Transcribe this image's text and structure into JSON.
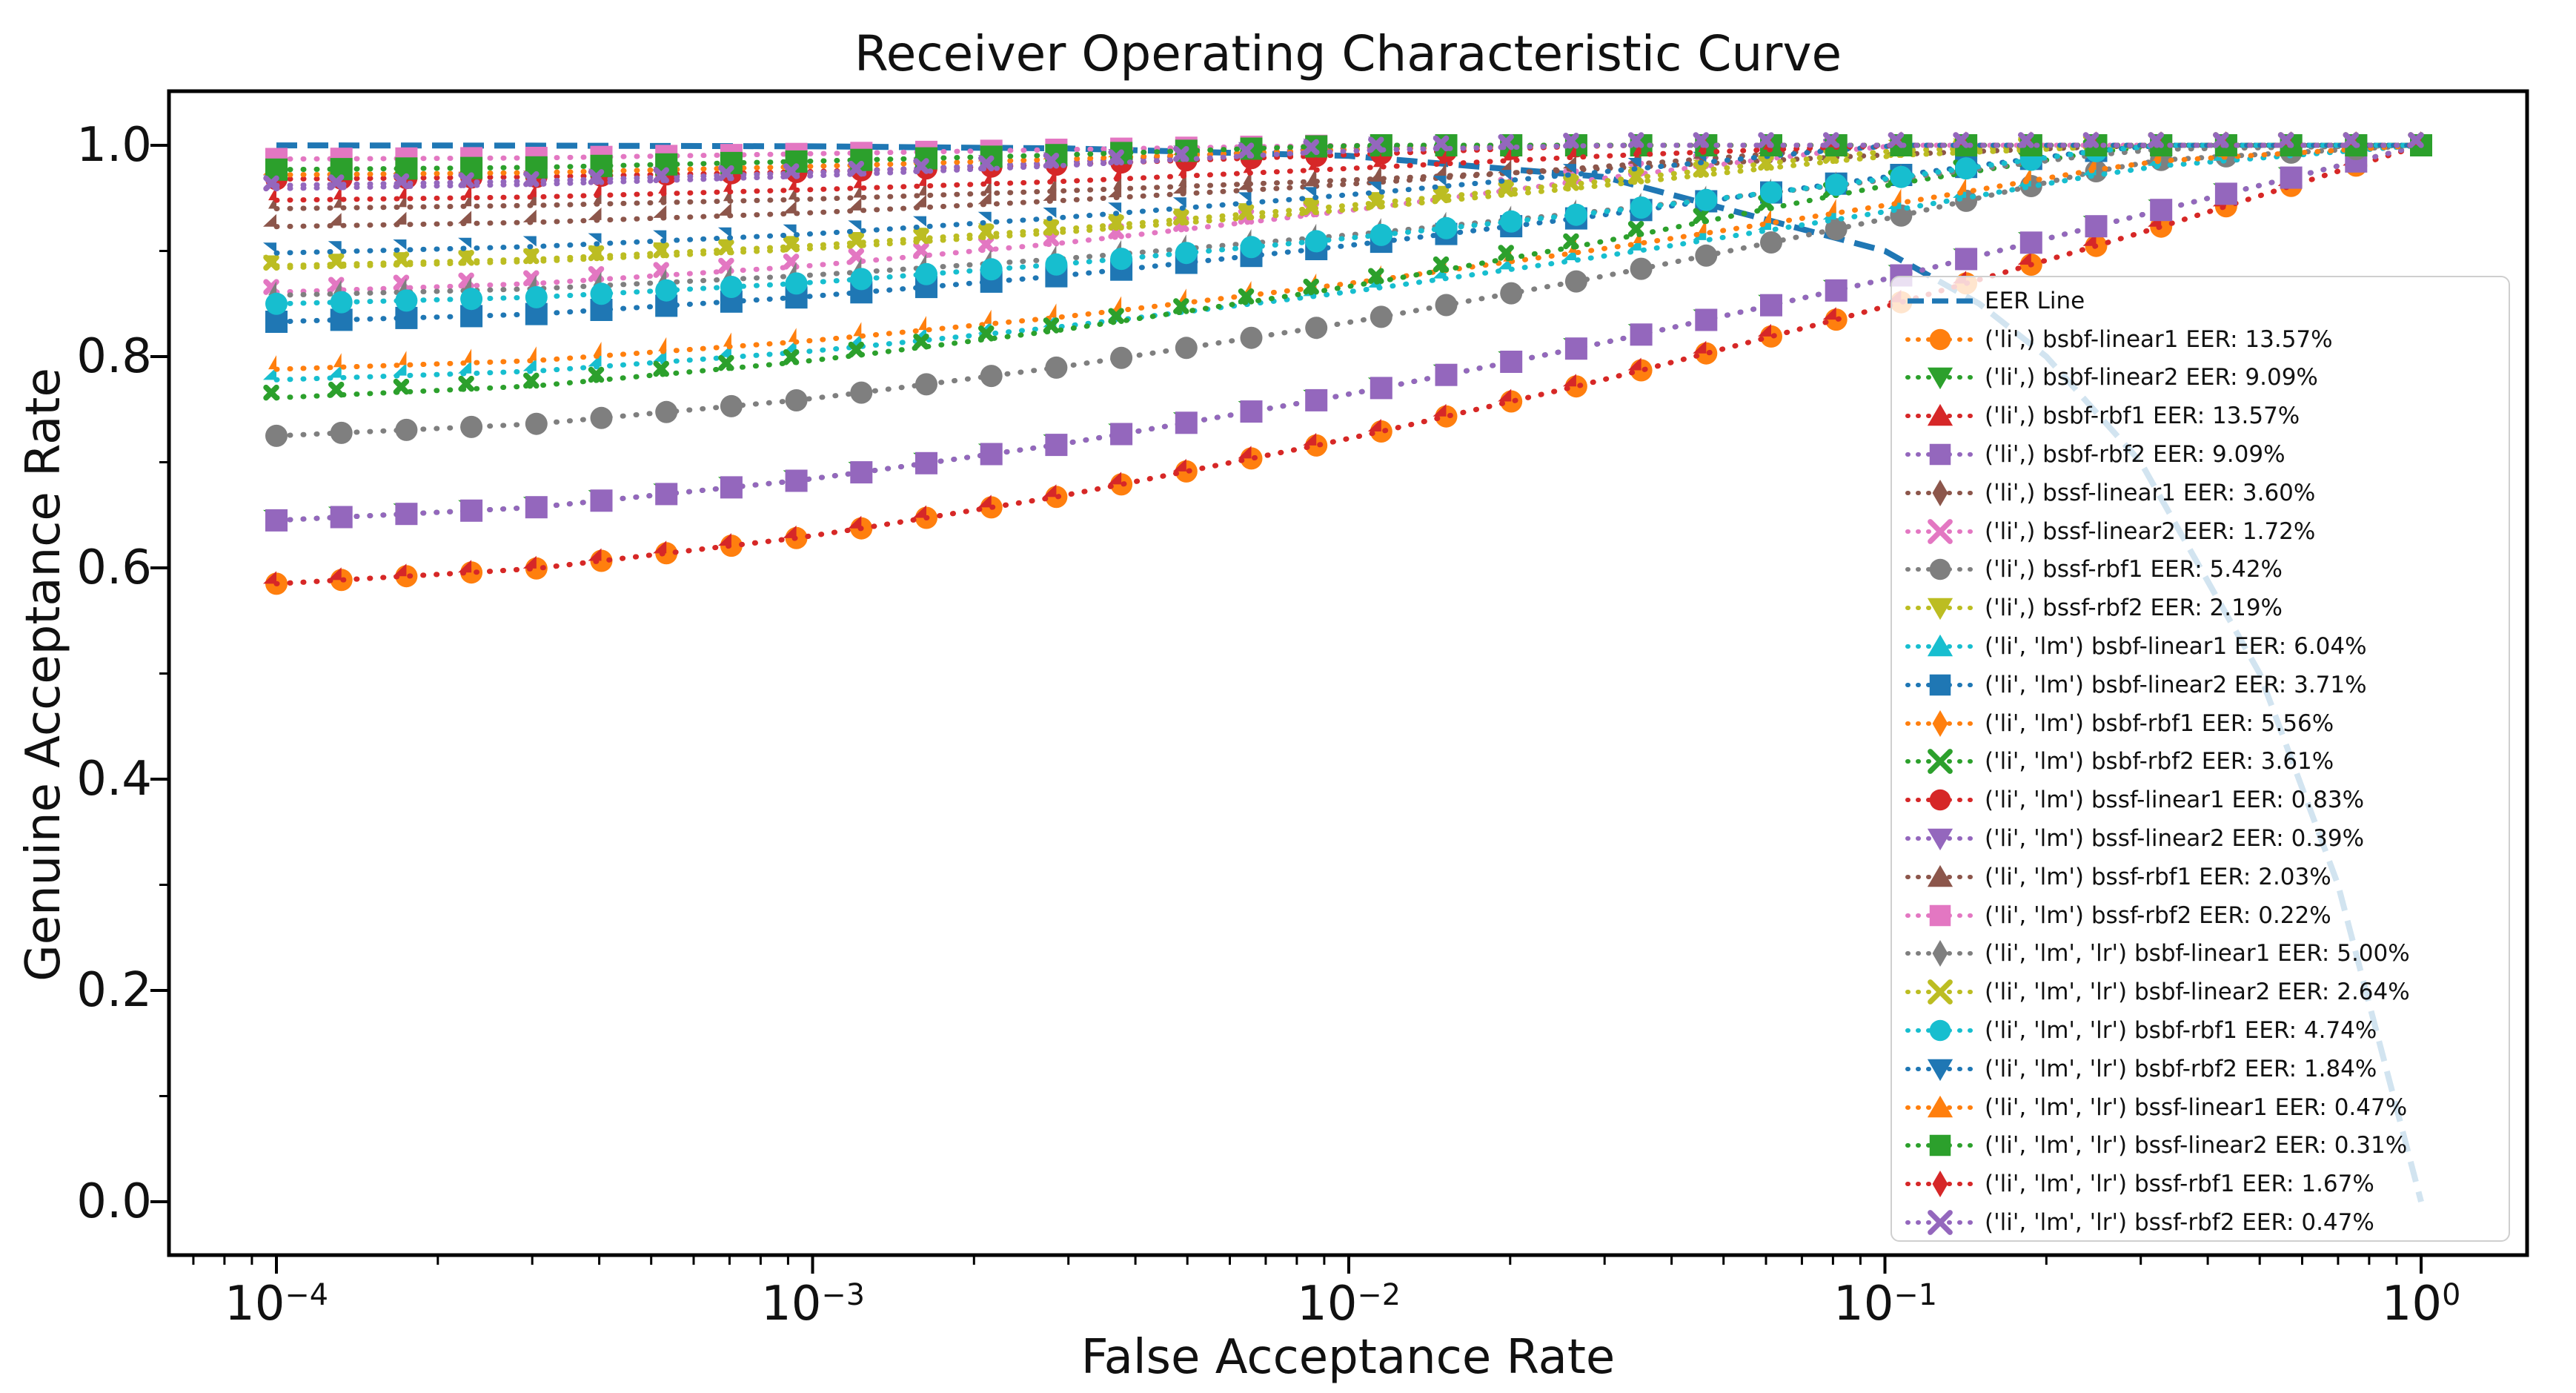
{
  "title": "Receiver Operating Characteristic Curve",
  "chart_data": {
    "type": "line",
    "title": "Receiver Operating Characteristic Curve",
    "xlabel": "False Acceptance Rate",
    "ylabel": "Genuine Acceptance Rate",
    "x_scale": "log",
    "xlim": [
      0.0001,
      1.0
    ],
    "ylim": [
      0.0,
      1.0
    ],
    "grid": false,
    "legend_position": "right-inside",
    "x": [
      0.0001,
      0.0003,
      0.001,
      0.003,
      0.01,
      0.03,
      0.1,
      0.3,
      1.0
    ],
    "x_tick_labels": [
      {
        "base": "10",
        "exp": "−4"
      },
      {
        "base": "10",
        "exp": "−3"
      },
      {
        "base": "10",
        "exp": "−2"
      },
      {
        "base": "10",
        "exp": "−1"
      },
      {
        "base": "10",
        "exp": "0"
      }
    ],
    "x_tick_values": [
      0.0001,
      0.001,
      0.01,
      0.1,
      1.0
    ],
    "y_tick_labels": [
      "0.0",
      "0.2",
      "0.4",
      "0.6",
      "0.8",
      "1.0"
    ],
    "y_tick_values": [
      0.0,
      0.2,
      0.4,
      0.6,
      0.8,
      1.0
    ],
    "eer_line": {
      "label": "EER Line",
      "color": "#1f77b4",
      "linestyle": "dashed",
      "x": [
        0.0001,
        0.0003,
        0.001,
        0.003,
        0.01,
        0.03,
        0.1,
        0.15,
        0.2,
        0.3,
        0.5,
        0.7,
        1.0
      ],
      "y": [
        0.9999,
        0.9997,
        0.999,
        0.997,
        0.99,
        0.97,
        0.9,
        0.85,
        0.8,
        0.7,
        0.5,
        0.3,
        0.0
      ]
    },
    "series": [
      {
        "label": "('li',) bsbf-linear1 EER: 13.57%",
        "eer": "13.57%",
        "color": "#ff7f0e",
        "marker": "circle",
        "linestyle": "dotted",
        "y": [
          0.585,
          0.599,
          0.63,
          0.669,
          0.722,
          0.778,
          0.847,
          0.917,
          1.0
        ]
      },
      {
        "label": "('li',) bsbf-linear2 EER: 9.09%",
        "eer": "9.09%",
        "color": "#2ca02c",
        "marker": "triangle-down",
        "linestyle": "dotted",
        "y": [
          0.645,
          0.657,
          0.684,
          0.718,
          0.764,
          0.813,
          0.873,
          0.934,
          1.0
        ]
      },
      {
        "label": "('li',) bsbf-rbf1 EER: 13.57%",
        "eer": "13.57%",
        "color": "#d62728",
        "marker": "triangle-up",
        "linestyle": "dotted",
        "y": [
          0.585,
          0.599,
          0.63,
          0.669,
          0.722,
          0.778,
          0.847,
          0.917,
          1.0
        ]
      },
      {
        "label": "('li',) bsbf-rbf2 EER: 9.09%",
        "eer": "9.09%",
        "color": "#9467bd",
        "marker": "square",
        "linestyle": "dotted",
        "y": [
          0.645,
          0.657,
          0.684,
          0.718,
          0.764,
          0.813,
          0.873,
          0.934,
          1.0
        ]
      },
      {
        "label": "('li',) bssf-linear1 EER: 3.60%",
        "eer": "3.60%",
        "color": "#8c564b",
        "marker": "thin-diamond",
        "linestyle": "dotted",
        "y": [
          0.94,
          0.943,
          0.949,
          0.957,
          0.967,
          0.978,
          0.991,
          1.0,
          1.0
        ]
      },
      {
        "label": "('li',) bssf-linear2 EER: 1.72%",
        "eer": "1.72%",
        "color": "#e377c2",
        "marker": "x",
        "linestyle": "dotted",
        "y": [
          0.861,
          0.869,
          0.886,
          0.908,
          0.938,
          0.969,
          1.0,
          1.0,
          1.0
        ]
      },
      {
        "label": "('li',) bssf-rbf1 EER: 5.42%",
        "eer": "5.42%",
        "color": "#7f7f7f",
        "marker": "circle",
        "linestyle": "dotted",
        "y": [
          0.725,
          0.736,
          0.76,
          0.791,
          0.832,
          0.876,
          0.93,
          0.985,
          1.0
        ]
      },
      {
        "label": "('li',) bssf-rbf2 EER: 2.19%",
        "eer": "2.19%",
        "color": "#bcbd22",
        "marker": "triangle-down",
        "linestyle": "dotted",
        "y": [
          0.886,
          0.892,
          0.905,
          0.921,
          0.943,
          0.966,
          0.995,
          1.0,
          1.0
        ]
      },
      {
        "label": "('li', 'lm') bsbf-linear1 EER: 6.04%",
        "eer": "6.04%",
        "color": "#17becf",
        "marker": "triangle-up",
        "linestyle": "dotted",
        "y": [
          0.778,
          0.786,
          0.805,
          0.829,
          0.861,
          0.895,
          0.937,
          0.979,
          1.0
        ]
      },
      {
        "label": "('li', 'lm') bsbf-linear2 EER: 3.71%",
        "eer": "3.71%",
        "color": "#1f77b4",
        "marker": "square",
        "linestyle": "dotted",
        "y": [
          0.833,
          0.84,
          0.857,
          0.877,
          0.905,
          0.934,
          0.97,
          1.0,
          1.0
        ]
      },
      {
        "label": "('li', 'lm') bsbf-rbf1 EER: 5.56%",
        "eer": "5.56%",
        "color": "#ff7f0e",
        "marker": "thin-diamond",
        "linestyle": "dotted",
        "y": [
          0.788,
          0.796,
          0.815,
          0.838,
          0.869,
          0.902,
          0.943,
          0.984,
          1.0
        ]
      },
      {
        "label": "('li', 'lm') bsbf-rbf2 EER: 3.61%",
        "eer": "3.61%",
        "color": "#2ca02c",
        "marker": "x",
        "linestyle": "dotted",
        "y": [
          0.761,
          0.772,
          0.796,
          0.826,
          0.866,
          0.909,
          0.962,
          1.0,
          1.0
        ]
      },
      {
        "label": "('li', 'lm') bssf-linear1 EER: 0.83%",
        "eer": "0.83%",
        "color": "#d62728",
        "marker": "circle",
        "linestyle": "dotted",
        "y": [
          0.968,
          0.97,
          0.975,
          0.982,
          0.991,
          1.0,
          1.0,
          1.0,
          1.0
        ]
      },
      {
        "label": "('li', 'lm') bssf-linear2 EER: 0.39%",
        "eer": "0.39%",
        "color": "#9467bd",
        "marker": "triangle-down",
        "linestyle": "dotted",
        "y": [
          0.962,
          0.966,
          0.974,
          0.984,
          0.998,
          1.0,
          1.0,
          1.0,
          1.0
        ]
      },
      {
        "label": "('li', 'lm') bssf-rbf1 EER: 2.03%",
        "eer": "2.03%",
        "color": "#8c564b",
        "marker": "triangle-up",
        "linestyle": "dotted",
        "y": [
          0.923,
          0.927,
          0.936,
          0.948,
          0.963,
          0.98,
          1.0,
          1.0,
          1.0
        ]
      },
      {
        "label": "('li', 'lm') bssf-rbf2 EER: 0.22%",
        "eer": "0.22%",
        "color": "#e377c2",
        "marker": "square",
        "linestyle": "dotted",
        "y": [
          0.987,
          0.988,
          0.992,
          0.996,
          1.0,
          1.0,
          1.0,
          1.0,
          1.0
        ]
      },
      {
        "label": "('li', 'lm', 'lr') bsbf-linear1 EER: 5.00%",
        "eer": "5.00%",
        "color": "#7f7f7f",
        "marker": "thin-diamond",
        "linestyle": "dotted",
        "y": [
          0.858,
          0.864,
          0.877,
          0.893,
          0.915,
          0.938,
          0.967,
          0.996,
          1.0
        ]
      },
      {
        "label": "('li', 'lm', 'lr') bsbf-linear2 EER: 2.64%",
        "eer": "2.64%",
        "color": "#bcbd22",
        "marker": "x",
        "linestyle": "dotted",
        "y": [
          0.884,
          0.89,
          0.902,
          0.918,
          0.939,
          0.962,
          0.99,
          1.0,
          1.0
        ]
      },
      {
        "label": "('li', 'lm', 'lr') bsbf-rbf1 EER: 4.74%",
        "eer": "4.74%",
        "color": "#17becf",
        "marker": "circle",
        "linestyle": "dotted",
        "y": [
          0.85,
          0.856,
          0.87,
          0.888,
          0.912,
          0.937,
          0.968,
          1.0,
          1.0
        ]
      },
      {
        "label": "('li', 'lm', 'lr') bsbf-rbf2 EER: 1.84%",
        "eer": "1.84%",
        "color": "#1f77b4",
        "marker": "triangle-down",
        "linestyle": "dotted",
        "y": [
          0.898,
          0.904,
          0.916,
          0.932,
          0.953,
          0.975,
          1.0,
          1.0,
          1.0
        ]
      },
      {
        "label": "('li', 'lm', 'lr') bssf-linear1 EER: 0.47%",
        "eer": "0.47%",
        "color": "#ff7f0e",
        "marker": "triangle-up",
        "linestyle": "dotted",
        "y": [
          0.972,
          0.974,
          0.98,
          0.987,
          0.996,
          1.0,
          1.0,
          1.0,
          1.0
        ]
      },
      {
        "label": "('li', 'lm', 'lr') bssf-linear2 EER: 0.31%",
        "eer": "0.31%",
        "color": "#2ca02c",
        "marker": "square",
        "linestyle": "dotted",
        "y": [
          0.977,
          0.979,
          0.985,
          0.991,
          1.0,
          1.0,
          1.0,
          1.0,
          1.0
        ]
      },
      {
        "label": "('li', 'lm', 'lr') bssf-rbf1 EER: 1.67%",
        "eer": "1.67%",
        "color": "#d62728",
        "marker": "thin-diamond",
        "linestyle": "dotted",
        "y": [
          0.948,
          0.951,
          0.958,
          0.966,
          0.978,
          0.99,
          1.0,
          1.0,
          1.0
        ]
      },
      {
        "label": "('li', 'lm', 'lr') bssf-rbf2 EER: 0.47%",
        "eer": "0.47%",
        "color": "#9467bd",
        "marker": "x",
        "linestyle": "dotted",
        "y": [
          0.959,
          0.963,
          0.971,
          0.981,
          0.995,
          1.0,
          1.0,
          1.0,
          1.0
        ]
      }
    ]
  }
}
